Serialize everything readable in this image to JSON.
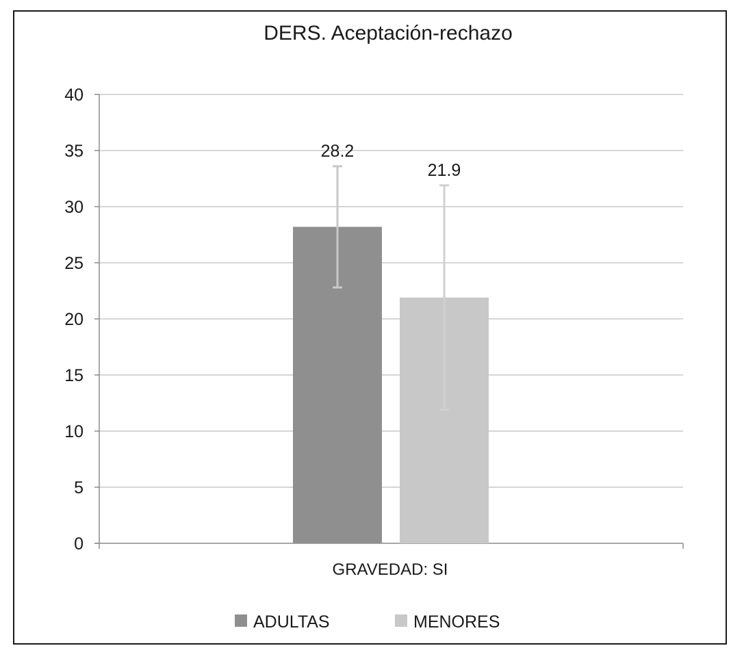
{
  "chart_data": {
    "type": "bar",
    "title": "DERS. Aceptación-rechazo",
    "categories": [
      "GRAVEDAD: SI"
    ],
    "series": [
      {
        "name": "ADULTAS",
        "values": [
          28.2
        ],
        "error_low": [
          22.8
        ],
        "error_high": [
          33.6
        ],
        "color": "#8f8f8f",
        "error_color": "#c8c8c8"
      },
      {
        "name": "MENORES",
        "values": [
          21.9
        ],
        "error_low": [
          11.9
        ],
        "error_high": [
          31.9
        ],
        "color": "#c8c8c8",
        "error_color": "#d0d0d0"
      }
    ],
    "data_labels": [
      "28.2",
      "21.9"
    ],
    "ylim": [
      0,
      40
    ],
    "yticks": [
      0,
      5,
      10,
      15,
      20,
      25,
      30,
      35,
      40
    ],
    "grid": true,
    "gridline_color": "#c8c8c8",
    "legend_position": "bottom"
  }
}
